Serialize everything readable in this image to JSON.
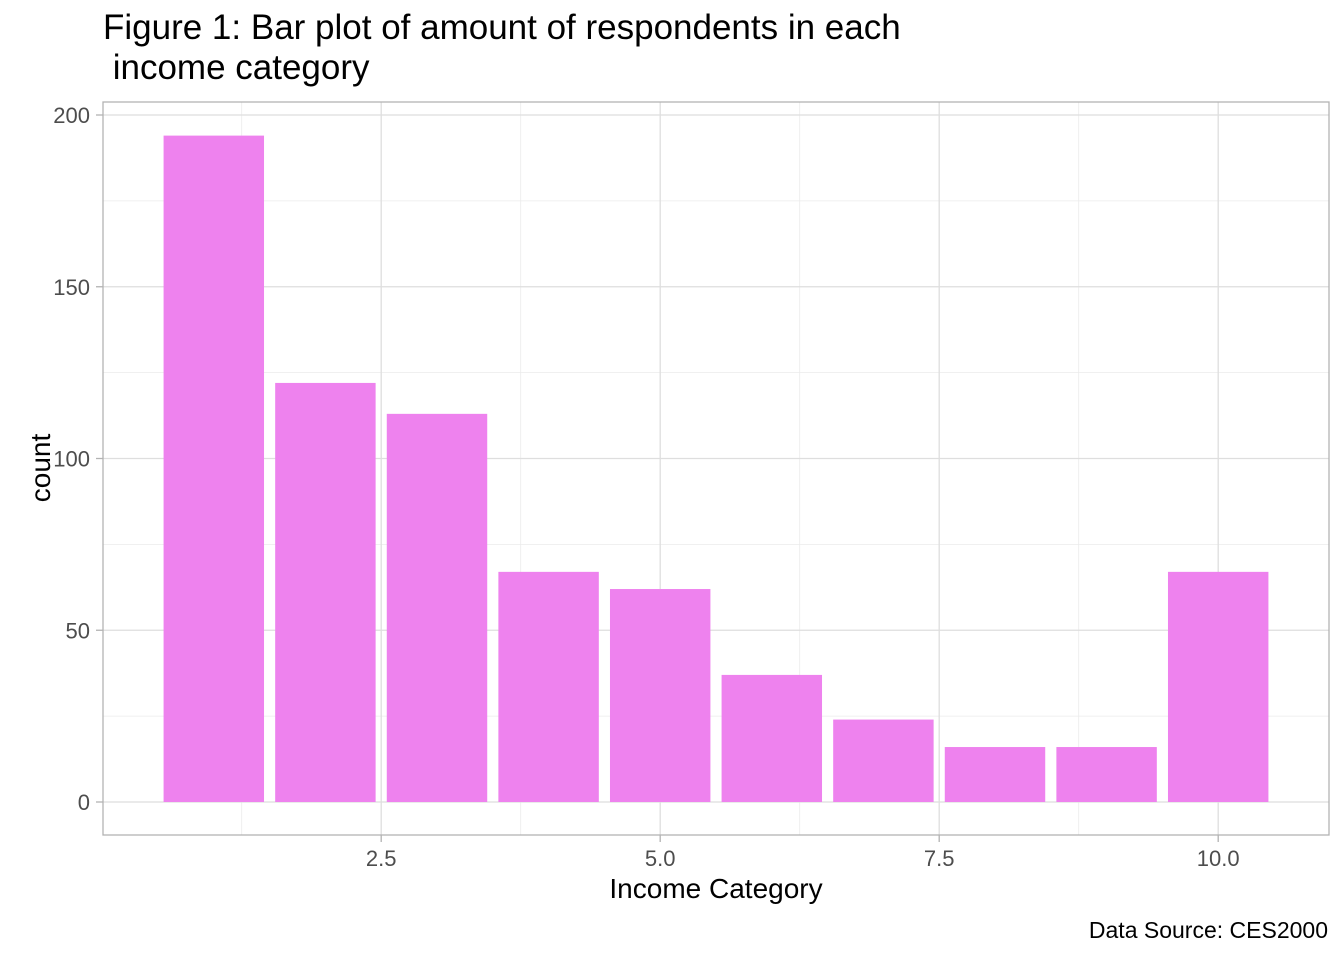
{
  "chart_data": {
    "type": "bar",
    "title": "Figure 1: Bar plot of amount of respondents in each\n income category",
    "xlabel": "Income Category",
    "ylabel": "count",
    "caption": "Data Source: CES2000",
    "x": [
      1,
      2,
      3,
      4,
      5,
      6,
      7,
      8,
      9,
      10
    ],
    "values": [
      194,
      122,
      113,
      67,
      62,
      37,
      24,
      16,
      16,
      67
    ],
    "xlim": [
      0.5,
      10.5
    ],
    "ylim": [
      0,
      200
    ],
    "x_ticks": [
      2.5,
      5.0,
      7.5,
      10.0
    ],
    "x_tick_labels": [
      "2.5",
      "5.0",
      "7.5",
      "10.0"
    ],
    "y_ticks": [
      0,
      50,
      100,
      150,
      200
    ],
    "y_tick_labels": [
      "0",
      "50",
      "100",
      "150",
      "200"
    ],
    "bar_color": "#EE82EE",
    "grid": true,
    "theme": "light"
  }
}
